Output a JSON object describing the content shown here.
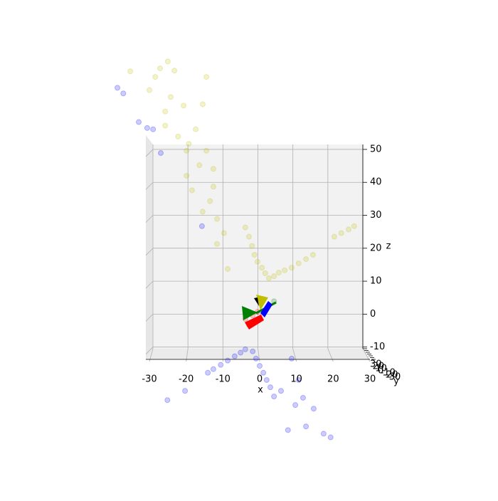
{
  "chart_data": {
    "type": "scatter3d",
    "xlabel": "x",
    "ylabel": "y",
    "zlabel": "z",
    "xlim": [
      -30,
      30
    ],
    "xticks": [
      -30,
      -20,
      -10,
      0,
      10,
      20,
      30
    ],
    "ylim": [
      -30,
      30
    ],
    "yticks": [
      30,
      20,
      10,
      0,
      -10,
      -20,
      -30
    ],
    "zlim": [
      -10.5,
      51.5
    ],
    "zticks": [
      -10,
      0,
      10,
      20,
      30,
      40,
      50
    ],
    "grid": true,
    "series": [
      {
        "color": "#bfbf00",
        "x": [
          -35.2,
          -27.1,
          -25.0,
          -23.2,
          -30.0,
          -24.2,
          -20.7,
          -25.7,
          -14.5,
          -15.5,
          -17.4,
          -22.2,
          -19.3,
          -14.5,
          -16.4,
          -12.6,
          -19.9,
          -18.4,
          -12.6,
          -15.5,
          -11.6,
          -9.7,
          -11.6,
          -8.7,
          -25.7,
          -28.4,
          -19.9,
          -13.5,
          -3.9,
          -2.9,
          -2.1,
          -1.4,
          -0.6,
          0.6,
          1.5,
          2.5,
          3.9,
          5.2,
          6.8,
          8.7,
          10.6,
          12.6,
          14.5,
          20.3,
          22.2,
          24.2,
          25.7
        ],
        "values": [
          73.7,
          74.6,
          76.7,
          73.9,
          68.0,
          65.9,
          63.3,
          61.5,
          72.0,
          63.7,
          56.1,
          53.9,
          51.7,
          49.6,
          45.2,
          44.1,
          42.0,
          37.6,
          38.7,
          31.1,
          28.9,
          24.6,
          21.3,
          13.7,
          57.2,
          72.0,
          49.6,
          34.3,
          26.3,
          23.5,
          20.7,
          18.0,
          15.9,
          14.1,
          12.4,
          10.9,
          11.5,
          12.6,
          13.3,
          14.1,
          15.4,
          16.7,
          18.0,
          23.5,
          24.6,
          25.7,
          26.7
        ]
      },
      {
        "color": "#0000ff",
        "x": [
          -38.7,
          -37.1,
          -32.9,
          -30.6,
          -29.0,
          -26.9,
          -15.7,
          -20.3,
          -25.1,
          8.7,
          10.6,
          11.8,
          14.7,
          7.7,
          12.6,
          17.4,
          19.3,
          5.8,
          9.7,
          -3.9,
          -5.2,
          -6.8,
          -8.7,
          -10.6,
          -12.6,
          -14.1,
          -1.9,
          -1.0,
          0.0,
          1.0,
          1.9,
          2.9,
          3.9
        ],
        "values": [
          68.7,
          67.0,
          58.3,
          56.5,
          56.1,
          48.9,
          26.7,
          -23.3,
          -26.1,
          -13.5,
          -20.0,
          -25.4,
          -28.7,
          -35.2,
          -34.1,
          -36.3,
          -37.4,
          -23.3,
          -27.6,
          -10.7,
          -11.7,
          -12.8,
          -14.1,
          -15.4,
          -16.7,
          -17.8,
          -11.3,
          -13.5,
          -15.7,
          -17.8,
          -20.0,
          -22.2,
          -25.0
        ]
      },
      {
        "color": "#ff0000",
        "x": [
          -3.9,
          -1.9,
          -0.6,
          -2.9
        ],
        "values": [
          -1.5,
          -0.4,
          0.7,
          -3.3
        ]
      },
      {
        "color": "#008000",
        "x": [
          3.9
        ],
        "values": [
          3.9
        ]
      }
    ]
  }
}
